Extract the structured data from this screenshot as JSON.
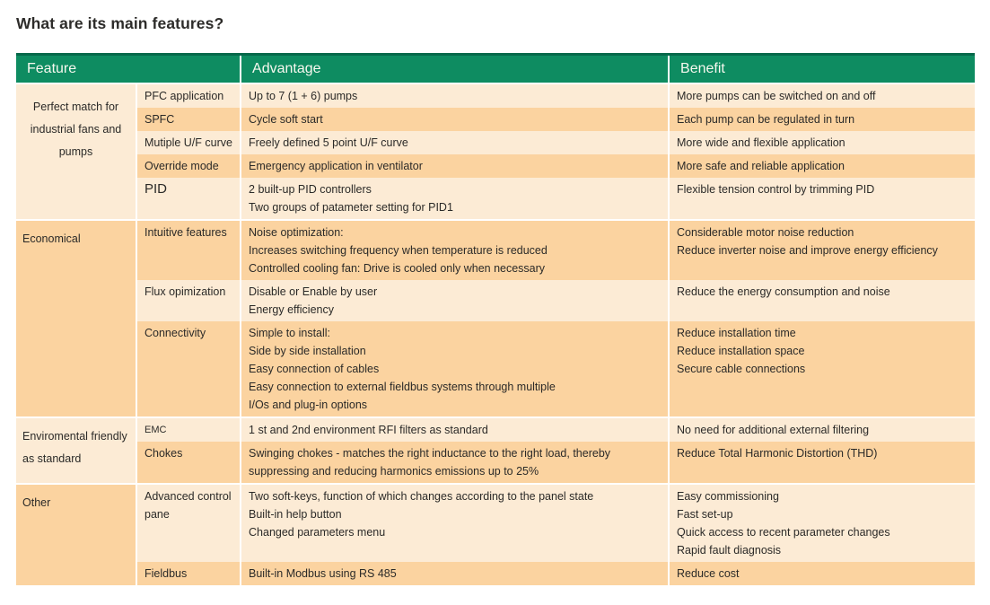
{
  "title": "What are its main features?",
  "colors": {
    "header_bg": "#0E8C61",
    "header_top_edge": "#05694A",
    "row_light": "#FCEBD5",
    "row_dark": "#FBD3A0",
    "header_text": "#F7F8EF",
    "body_text": "#2B2A28"
  },
  "table": {
    "headers": [
      {
        "label": "Feature"
      },
      {
        "label": "Advantage"
      },
      {
        "label": "Benefit"
      }
    ],
    "sections": [
      {
        "feature_label": "Perfect match for industrial fans and pumps",
        "feature_shade": "light",
        "feature_align": "center",
        "rows": [
          {
            "feature": "PFC application",
            "shade": "light",
            "advantage": [
              "Up to 7 (1 + 6) pumps"
            ],
            "benefit": [
              "More pumps can be switched on and off"
            ]
          },
          {
            "feature": "SPFC",
            "shade": "dark",
            "advantage": [
              "Cycle soft start"
            ],
            "benefit": [
              "Each pump can be regulated in turn"
            ]
          },
          {
            "feature": "Mutiple U/F curve",
            "shade": "light",
            "advantage": [
              "Freely defined 5 point U/F curve"
            ],
            "benefit": [
              "More wide and flexible application"
            ]
          },
          {
            "feature": "Override mode",
            "shade": "dark",
            "advantage": [
              "Emergency application in ventilator"
            ],
            "benefit": [
              "More safe and reliable application"
            ]
          },
          {
            "feature": "PID",
            "feature_size": "large",
            "shade": "light",
            "advantage": [
              "2 built-up PID controllers",
              "Two groups of patameter setting for PID1"
            ],
            "benefit": [
              "Flexible tension control by trimming PID"
            ]
          }
        ]
      },
      {
        "feature_label": "Economical",
        "feature_shade": "dark",
        "feature_align": "left",
        "rows": [
          {
            "feature": "Intuitive features",
            "shade": "dark",
            "advantage": [
              "Noise optimization:",
              "Increases switching frequency when temperature is reduced",
              "Controlled cooling fan: Drive is cooled only when necessary"
            ],
            "benefit": [
              "Considerable motor noise reduction",
              "Reduce inverter noise and improve energy efficiency"
            ]
          },
          {
            "feature": "Flux opimization",
            "shade": "light",
            "advantage": [
              "Disable or Enable by user",
              "Energy efficiency"
            ],
            "benefit": [
              "Reduce the energy consumption and noise"
            ]
          },
          {
            "feature": "Connectivity",
            "shade": "dark",
            "advantage": [
              "Simple to install:",
              "Side by side installation",
              "Easy connection of cables",
              "Easy connection to external fieldbus systems through multiple",
              "I/Os and plug-in options"
            ],
            "benefit": [
              "Reduce installation time",
              "Reduce installation space",
              "Secure cable connections"
            ]
          }
        ]
      },
      {
        "feature_label": "Enviromental friendly as standard",
        "feature_shade": "light",
        "feature_align": "left",
        "rows": [
          {
            "feature": "EMC",
            "feature_size": "small",
            "shade": "light",
            "advantage": [
              "1 st and 2nd environment RFI filters as standard"
            ],
            "benefit": [
              "No need for additional external filtering"
            ]
          },
          {
            "feature": "Chokes",
            "shade": "dark",
            "advantage": [
              "Swinging chokes - matches the right inductance to the right load, thereby",
              "suppressing and reducing harmonics emissions up to 25%"
            ],
            "benefit": [
              "Reduce Total Harmonic Distortion (THD)"
            ]
          }
        ]
      },
      {
        "feature_label": "Other",
        "feature_shade": "dark",
        "feature_align": "left",
        "rows": [
          {
            "feature": "Advanced control pane",
            "shade": "light",
            "advantage": [
              "Two soft-keys, function of which changes according to the panel state",
              "Built-in help button",
              "Changed parameters menu"
            ],
            "benefit": [
              "Easy commissioning",
              "Fast set-up",
              "Quick access to recent parameter changes",
              "Rapid fault diagnosis"
            ]
          },
          {
            "feature": "Fieldbus",
            "shade": "dark",
            "advantage": [
              "Built-in Modbus using RS 485"
            ],
            "benefit": [
              "Reduce cost"
            ]
          }
        ]
      }
    ]
  }
}
